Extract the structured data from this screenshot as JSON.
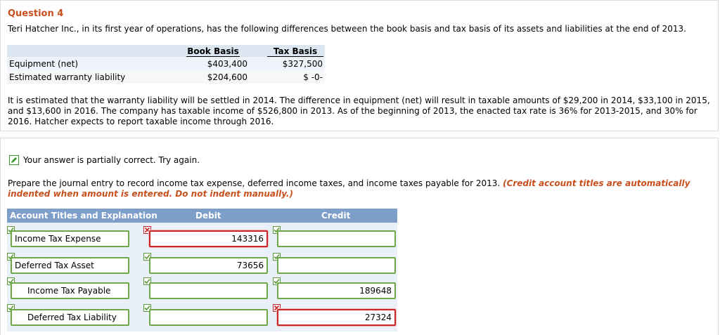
{
  "question": {
    "title": "Question 4",
    "intro": "Teri Hatcher Inc., in its first year of operations, has the following differences between the book basis and tax basis of its assets and liabilities at the end of 2013.",
    "basis_table": {
      "headers": [
        "Book Basis",
        "Tax Basis"
      ],
      "rows": [
        {
          "label": "Equipment (net)",
          "book": "$403,400",
          "tax": "$327,500"
        },
        {
          "label": "Estimated warranty liability",
          "book": "$204,600",
          "tax": "$ -0-"
        }
      ]
    },
    "paragraph": "It is estimated that the warranty liability will be settled in 2014. The difference in equipment (net) will result in taxable amounts of $29,200 in 2014, $33,100 in 2015, and $13,600 in 2016. The company has taxable income of $526,800 in 2013. As of the beginning of 2013, the enacted tax rate is 36% for 2013-2015, and 30% for 2016. Hatcher expects to report taxable income through 2016."
  },
  "answer": {
    "status_text": "Your answer is partially correct.  Try again.",
    "instruction": "Prepare the journal entry to record income tax expense, deferred income taxes, and income taxes payable for 2013.",
    "instruction_note": "(Credit account titles are automatically indented when amount is entered. Do not indent manually.)",
    "table": {
      "headers": [
        "Account Titles and Explanation",
        "Debit",
        "Credit"
      ],
      "rows": [
        {
          "account": "Income Tax Expense",
          "debit": "143316",
          "credit": ""
        },
        {
          "account": "Deferred Tax Asset",
          "debit": "73656",
          "credit": ""
        },
        {
          "account": "Income Tax Payable",
          "debit": "",
          "credit": "189648"
        },
        {
          "account": "Deferred Tax Liability",
          "debit": "",
          "credit": "27324"
        }
      ]
    },
    "colors": {
      "correct": "#5a9a3a",
      "incorrect": "#c8262a",
      "header": "#7d9ec8",
      "accent": "#c8501e"
    }
  }
}
